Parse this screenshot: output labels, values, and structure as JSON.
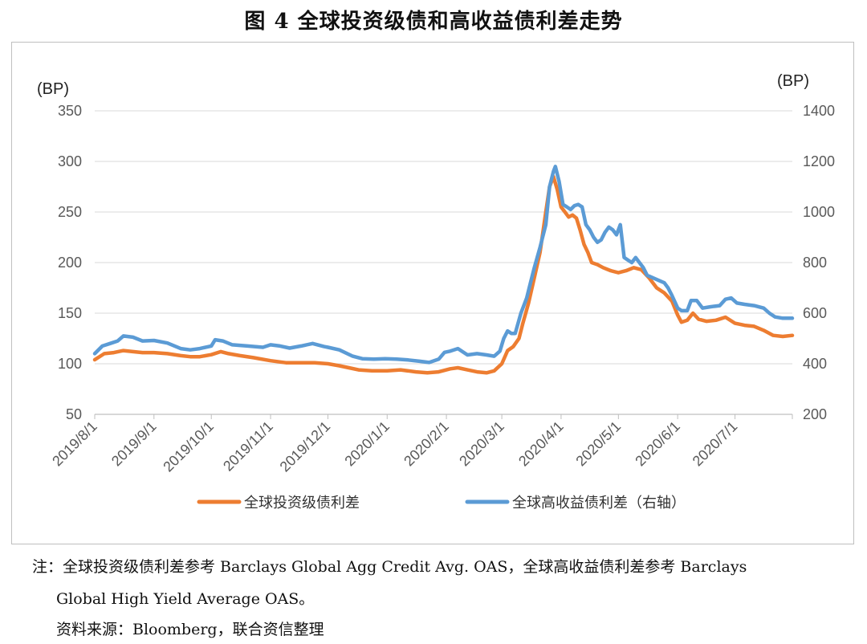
{
  "title": "图 4  全球投资级债和高收益债利差走势",
  "note_line1": "注：全球投资级债利差参考 Barclays Global Agg Credit Avg. OAS，全球高收益债利差参考 Barclays",
  "note_line2": "Global High Yield Average OAS。",
  "source": "资料来源：Bloomberg，联合资信整理",
  "colors": {
    "ig": "#ED7D31",
    "hy": "#5B9BD5"
  },
  "chart_data": {
    "type": "line",
    "left_unit": "(BP)",
    "right_unit": "(BP)",
    "y_left": {
      "min": 50,
      "max": 350,
      "ticks": [
        50,
        100,
        150,
        200,
        250,
        300,
        350
      ]
    },
    "y_right": {
      "min": 200,
      "max": 1400,
      "ticks": [
        200,
        400,
        600,
        800,
        1000,
        1200,
        1400
      ]
    },
    "x_ticks": [
      "2019/8/1",
      "2019/9/1",
      "2019/10/1",
      "2019/11/1",
      "2019/12/1",
      "2020/1/1",
      "2020/2/1",
      "2020/3/1",
      "2020/4/1",
      "2020/5/1",
      "2020/6/1",
      "2020/7/1"
    ],
    "x_range": [
      0,
      365
    ],
    "x_tick_pos": [
      0,
      31,
      61,
      92,
      122,
      153,
      184,
      213,
      244,
      274,
      305,
      335
    ],
    "series": [
      {
        "name": "全球投资级债利差",
        "axis": "left",
        "points": [
          [
            0,
            104
          ],
          [
            5,
            110
          ],
          [
            10,
            111
          ],
          [
            15,
            113
          ],
          [
            20,
            112
          ],
          [
            25,
            111
          ],
          [
            31,
            111
          ],
          [
            38,
            110
          ],
          [
            45,
            108
          ],
          [
            50,
            107
          ],
          [
            55,
            107
          ],
          [
            61,
            109
          ],
          [
            66,
            112
          ],
          [
            70,
            110
          ],
          [
            76,
            108
          ],
          [
            83,
            106
          ],
          [
            92,
            103
          ],
          [
            100,
            101
          ],
          [
            108,
            101
          ],
          [
            115,
            101
          ],
          [
            122,
            100
          ],
          [
            128,
            98
          ],
          [
            133,
            96
          ],
          [
            138,
            94
          ],
          [
            145,
            93
          ],
          [
            153,
            93
          ],
          [
            160,
            94
          ],
          [
            168,
            92
          ],
          [
            174,
            91
          ],
          [
            180,
            92
          ],
          [
            186,
            95
          ],
          [
            190,
            96
          ],
          [
            195,
            94
          ],
          [
            200,
            92
          ],
          [
            205,
            91
          ],
          [
            209,
            93
          ],
          [
            213,
            100
          ],
          [
            216,
            113
          ],
          [
            219,
            117
          ],
          [
            222,
            125
          ],
          [
            224,
            140
          ],
          [
            227,
            160
          ],
          [
            230,
            185
          ],
          [
            233,
            210
          ],
          [
            236,
            250
          ],
          [
            238,
            275
          ],
          [
            240,
            285
          ],
          [
            242,
            272
          ],
          [
            244,
            255
          ],
          [
            246,
            250
          ],
          [
            248,
            245
          ],
          [
            250,
            247
          ],
          [
            252,
            244
          ],
          [
            254,
            232
          ],
          [
            256,
            218
          ],
          [
            258,
            210
          ],
          [
            260,
            200
          ],
          [
            263,
            198
          ],
          [
            266,
            195
          ],
          [
            270,
            192
          ],
          [
            274,
            190
          ],
          [
            278,
            192
          ],
          [
            282,
            195
          ],
          [
            286,
            193
          ],
          [
            290,
            185
          ],
          [
            294,
            175
          ],
          [
            298,
            170
          ],
          [
            302,
            162
          ],
          [
            305,
            148
          ],
          [
            307,
            141
          ],
          [
            310,
            143
          ],
          [
            313,
            150
          ],
          [
            316,
            144
          ],
          [
            320,
            142
          ],
          [
            325,
            143
          ],
          [
            330,
            146
          ],
          [
            335,
            140
          ],
          [
            340,
            138
          ],
          [
            345,
            137
          ],
          [
            350,
            133
          ],
          [
            355,
            128
          ],
          [
            360,
            127
          ],
          [
            365,
            128
          ]
        ]
      },
      {
        "name": "全球高收益债利差（右轴）",
        "axis": "right",
        "points": [
          [
            0,
            440
          ],
          [
            4,
            470
          ],
          [
            8,
            480
          ],
          [
            12,
            490
          ],
          [
            15,
            510
          ],
          [
            20,
            505
          ],
          [
            25,
            490
          ],
          [
            31,
            492
          ],
          [
            38,
            482
          ],
          [
            45,
            460
          ],
          [
            50,
            455
          ],
          [
            55,
            460
          ],
          [
            61,
            470
          ],
          [
            63,
            495
          ],
          [
            67,
            490
          ],
          [
            72,
            475
          ],
          [
            80,
            470
          ],
          [
            88,
            465
          ],
          [
            92,
            475
          ],
          [
            97,
            470
          ],
          [
            102,
            462
          ],
          [
            108,
            470
          ],
          [
            114,
            480
          ],
          [
            120,
            468
          ],
          [
            122,
            465
          ],
          [
            128,
            455
          ],
          [
            135,
            430
          ],
          [
            140,
            420
          ],
          [
            146,
            418
          ],
          [
            152,
            420
          ],
          [
            158,
            418
          ],
          [
            164,
            415
          ],
          [
            170,
            410
          ],
          [
            175,
            405
          ],
          [
            180,
            418
          ],
          [
            183,
            445
          ],
          [
            186,
            450
          ],
          [
            190,
            460
          ],
          [
            195,
            435
          ],
          [
            200,
            440
          ],
          [
            205,
            435
          ],
          [
            209,
            430
          ],
          [
            212,
            450
          ],
          [
            214,
            500
          ],
          [
            216,
            530
          ],
          [
            218,
            520
          ],
          [
            220,
            520
          ],
          [
            223,
            600
          ],
          [
            226,
            660
          ],
          [
            228,
            720
          ],
          [
            230,
            780
          ],
          [
            233,
            860
          ],
          [
            236,
            950
          ],
          [
            238,
            1100
          ],
          [
            240,
            1160
          ],
          [
            241,
            1180
          ],
          [
            243,
            1120
          ],
          [
            245,
            1030
          ],
          [
            247,
            1020
          ],
          [
            249,
            1010
          ],
          [
            251,
            1025
          ],
          [
            253,
            1030
          ],
          [
            255,
            1020
          ],
          [
            257,
            950
          ],
          [
            259,
            930
          ],
          [
            261,
            900
          ],
          [
            263,
            880
          ],
          [
            265,
            890
          ],
          [
            267,
            920
          ],
          [
            269,
            940
          ],
          [
            271,
            930
          ],
          [
            273,
            910
          ],
          [
            275,
            950
          ],
          [
            277,
            820
          ],
          [
            279,
            810
          ],
          [
            281,
            800
          ],
          [
            283,
            820
          ],
          [
            285,
            800
          ],
          [
            287,
            780
          ],
          [
            289,
            750
          ],
          [
            292,
            740
          ],
          [
            295,
            730
          ],
          [
            298,
            720
          ],
          [
            300,
            700
          ],
          [
            302,
            670
          ],
          [
            305,
            620
          ],
          [
            307,
            610
          ],
          [
            310,
            610
          ],
          [
            312,
            650
          ],
          [
            315,
            650
          ],
          [
            318,
            620
          ],
          [
            322,
            625
          ],
          [
            327,
            630
          ],
          [
            330,
            655
          ],
          [
            333,
            660
          ],
          [
            336,
            640
          ],
          [
            340,
            635
          ],
          [
            345,
            630
          ],
          [
            350,
            620
          ],
          [
            353,
            600
          ],
          [
            356,
            585
          ],
          [
            360,
            580
          ],
          [
            365,
            580
          ]
        ]
      }
    ],
    "legend": "bottom"
  }
}
